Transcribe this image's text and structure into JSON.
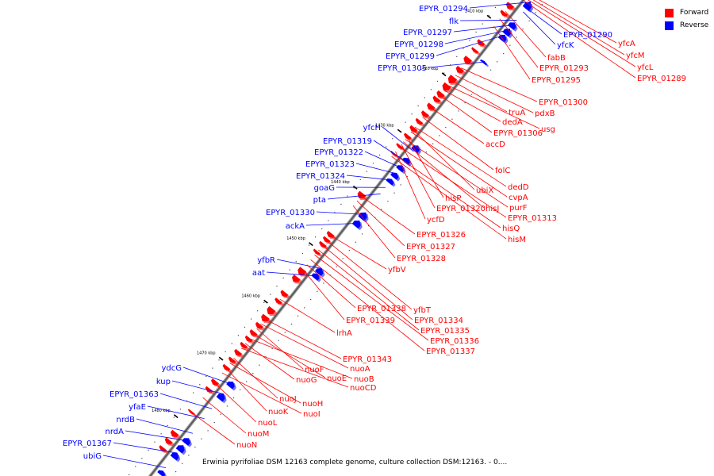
{
  "caption": "Erwinia pyrifoliae DSM 12163 complete genome, culture collection DSM:12163. - 0....",
  "legend": [
    {
      "label": "Forward",
      "color": "#ff0000"
    },
    {
      "label": "Reverse",
      "color": "#0000ff"
    }
  ],
  "colors": {
    "forward": "#ff0000",
    "reverse": "#0000ff",
    "axis": "#888888"
  },
  "ticks": [
    {
      "label": "1410 kbp",
      "t": 0.068
    },
    {
      "label": "1420 kbp",
      "t": 0.185
    },
    {
      "label": "1430 kbp",
      "t": 0.3
    },
    {
      "label": "1440 kbp",
      "t": 0.415
    },
    {
      "label": "1450 kbp",
      "t": 0.53
    },
    {
      "label": "1460 kbp",
      "t": 0.647
    },
    {
      "label": "1470 kbp",
      "t": 0.763
    },
    {
      "label": "1480 kbp",
      "t": 0.88
    }
  ],
  "genes": [
    {
      "label": "EPYR_01294",
      "strand": "reverse",
      "t": 0.008
    },
    {
      "label": "flk",
      "strand": "reverse",
      "t": 0.045
    },
    {
      "label": "EPYR_01297",
      "strand": "reverse",
      "t": 0.055
    },
    {
      "label": "EPYR_01298",
      "strand": "reverse",
      "t": 0.065
    },
    {
      "label": "EPYR_01299",
      "strand": "reverse",
      "t": 0.075
    },
    {
      "label": "EPYR_01305",
      "strand": "reverse",
      "t": 0.13
    },
    {
      "label": "yfcH",
      "strand": "reverse",
      "t": 0.312
    },
    {
      "label": "EPYR_01319",
      "strand": "reverse",
      "t": 0.332
    },
    {
      "label": "EPYR_01322",
      "strand": "reverse",
      "t": 0.345
    },
    {
      "label": "EPYR_01323",
      "strand": "reverse",
      "t": 0.357
    },
    {
      "label": "EPYR_01324",
      "strand": "reverse",
      "t": 0.37
    },
    {
      "label": "goaG",
      "strand": "reverse",
      "t": 0.385
    },
    {
      "label": "pta",
      "strand": "reverse",
      "t": 0.398
    },
    {
      "label": "EPYR_01330",
      "strand": "reverse",
      "t": 0.44
    },
    {
      "label": "ackA",
      "strand": "reverse",
      "t": 0.458
    },
    {
      "label": "yfbR",
      "strand": "reverse",
      "t": 0.55
    },
    {
      "label": "aat",
      "strand": "reverse",
      "t": 0.565
    },
    {
      "label": "ydcG",
      "strand": "reverse",
      "t": 0.785
    },
    {
      "label": "kup",
      "strand": "reverse",
      "t": 0.805
    },
    {
      "label": "EPYR_01363",
      "strand": "reverse",
      "t": 0.835
    },
    {
      "label": "yfaE",
      "strand": "reverse",
      "t": 0.855
    },
    {
      "label": "nrdB",
      "strand": "reverse",
      "t": 0.885
    },
    {
      "label": "nrdA",
      "strand": "reverse",
      "t": 0.9
    },
    {
      "label": "EPYR_01367",
      "strand": "reverse",
      "t": 0.925
    },
    {
      "label": "ubiG",
      "strand": "reverse",
      "t": 0.955
    },
    {
      "label": "EPYR_01290",
      "strand": "reverse",
      "t": 0.02
    },
    {
      "label": "yfcK",
      "strand": "reverse",
      "t": 0.028
    },
    {
      "label": "yfcA",
      "strand": "forward",
      "t": 0.002
    },
    {
      "label": "yfcM",
      "strand": "forward",
      "t": 0.006
    },
    {
      "label": "yfcL",
      "strand": "forward",
      "t": 0.01
    },
    {
      "label": "EPYR_01289",
      "strand": "forward",
      "t": 0.014
    },
    {
      "label": "fabB",
      "strand": "forward",
      "t": 0.045
    },
    {
      "label": "EPYR_01293",
      "strand": "forward",
      "t": 0.06
    },
    {
      "label": "EPYR_01295",
      "strand": "forward",
      "t": 0.075
    },
    {
      "label": "EPYR_01300",
      "strand": "forward",
      "t": 0.16
    },
    {
      "label": "pdxB",
      "strand": "forward",
      "t": 0.175
    },
    {
      "label": "truA",
      "strand": "forward",
      "t": 0.185
    },
    {
      "label": "usg",
      "strand": "forward",
      "t": 0.195
    },
    {
      "label": "dedA",
      "strand": "forward",
      "t": 0.205
    },
    {
      "label": "EPYR_01306",
      "strand": "forward",
      "t": 0.215
    },
    {
      "label": "accD",
      "strand": "forward",
      "t": 0.24
    },
    {
      "label": "folC",
      "strand": "forward",
      "t": 0.26
    },
    {
      "label": "dedD",
      "strand": "forward",
      "t": 0.28
    },
    {
      "label": "ubiX",
      "strand": "forward",
      "t": 0.285
    },
    {
      "label": "cvpA",
      "strand": "forward",
      "t": 0.29
    },
    {
      "label": "hisP",
      "strand": "forward",
      "t": 0.3
    },
    {
      "label": "purF",
      "strand": "forward",
      "t": 0.305
    },
    {
      "label": "hisJ",
      "strand": "forward",
      "t": 0.31
    },
    {
      "label": "EPYR_01320",
      "strand": "forward",
      "t": 0.315
    },
    {
      "label": "EPYR_01313",
      "strand": "forward",
      "t": 0.32
    },
    {
      "label": "ycfD",
      "strand": "forward",
      "t": 0.33
    },
    {
      "label": "hisQ",
      "strand": "forward",
      "t": 0.335
    },
    {
      "label": "hisM",
      "strand": "forward",
      "t": 0.34
    },
    {
      "label": "EPYR_01326",
      "strand": "forward",
      "t": 0.42
    },
    {
      "label": "EPYR_01327",
      "strand": "forward",
      "t": 0.43
    },
    {
      "label": "EPYR_01328",
      "strand": "forward",
      "t": 0.44
    },
    {
      "label": "yfbV",
      "strand": "forward",
      "t": 0.5
    },
    {
      "label": "yfbT",
      "strand": "forward",
      "t": 0.51
    },
    {
      "label": "EPYR_01338",
      "strand": "forward",
      "t": 0.56
    },
    {
      "label": "EPYR_01334",
      "strand": "forward",
      "t": 0.52
    },
    {
      "label": "EPYR_01339",
      "strand": "forward",
      "t": 0.57
    },
    {
      "label": "EPYR_01335",
      "strand": "forward",
      "t": 0.53
    },
    {
      "label": "EPYR_01336",
      "strand": "forward",
      "t": 0.54
    },
    {
      "label": "EPYR_01337",
      "strand": "forward",
      "t": 0.55
    },
    {
      "label": "lrhA",
      "strand": "forward",
      "t": 0.63
    },
    {
      "label": "EPYR_01343",
      "strand": "forward",
      "t": 0.67
    },
    {
      "label": "nuoA",
      "strand": "forward",
      "t": 0.68
    },
    {
      "label": "nuoF",
      "strand": "forward",
      "t": 0.69
    },
    {
      "label": "nuoE",
      "strand": "forward",
      "t": 0.7
    },
    {
      "label": "nuoB",
      "strand": "forward",
      "t": 0.71
    },
    {
      "label": "nuoG",
      "strand": "forward",
      "t": 0.72
    },
    {
      "label": "nuoCD",
      "strand": "forward",
      "t": 0.73
    },
    {
      "label": "nuoJ",
      "strand": "forward",
      "t": 0.75
    },
    {
      "label": "nuoH",
      "strand": "forward",
      "t": 0.76
    },
    {
      "label": "nuoK",
      "strand": "forward",
      "t": 0.77
    },
    {
      "label": "nuoI",
      "strand": "forward",
      "t": 0.78
    },
    {
      "label": "nuoL",
      "strand": "forward",
      "t": 0.8
    },
    {
      "label": "nuoM",
      "strand": "forward",
      "t": 0.83
    },
    {
      "label": "nuoN",
      "strand": "forward",
      "t": 0.86
    }
  ]
}
